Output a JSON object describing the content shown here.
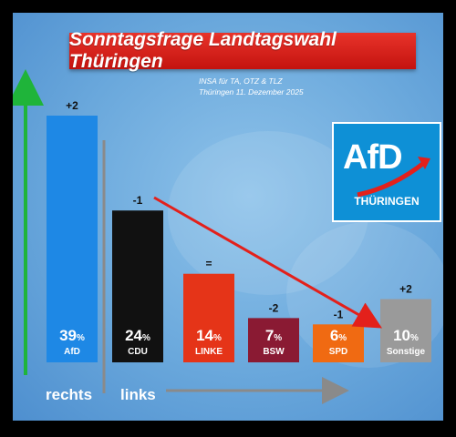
{
  "header": {
    "title": "Sonntagsfrage Landtagswahl Thüringen",
    "source": "INSA für TA, OTZ & TLZ",
    "date": "Thüringen 11. Dezember 2025"
  },
  "logo": {
    "name": "AfD",
    "region": "THÜRINGEN"
  },
  "axis_labels": {
    "right": "rechts",
    "left": "links"
  },
  "colors": {
    "title_bg": "#d91f1a",
    "background": "#6aa8dc",
    "arrow_green": "#1fb43a",
    "arrow_red": "#e3201b"
  },
  "chart_data": {
    "type": "bar",
    "categories": [
      "AfD",
      "CDU",
      "LINKE",
      "BSW",
      "SPD",
      "Sonstige"
    ],
    "values": [
      39,
      24,
      14,
      7,
      6,
      10
    ],
    "value_labels": [
      "39",
      "24",
      "14",
      "7",
      "6",
      "10"
    ],
    "unit": "%",
    "changes": [
      "+2",
      "-1",
      "=",
      "-2",
      "-1",
      "+2"
    ],
    "colors": [
      "#1e88e5",
      "#111111",
      "#e53418",
      "#8a1a33",
      "#f06a12",
      "#9a9a9a"
    ],
    "title": "Sonntagsfrage Landtagswahl Thüringen",
    "xlabel": "",
    "ylabel": "",
    "ylim": [
      0,
      39
    ]
  }
}
